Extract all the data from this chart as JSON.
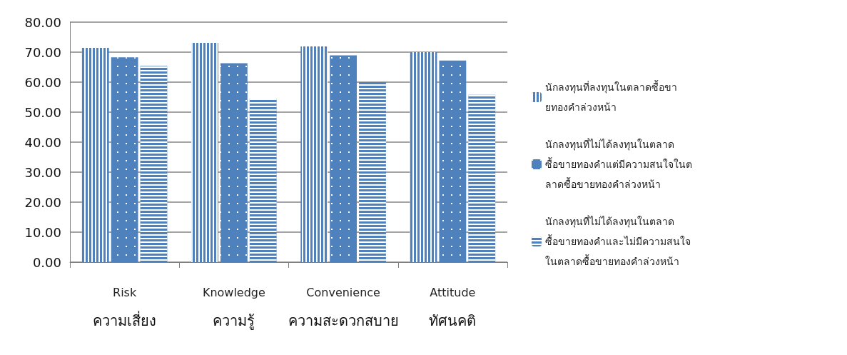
{
  "chart_data": {
    "type": "bar",
    "categories": [
      "Risk\nความเสี่ยง",
      "Knowledge\nความรู้",
      "Convenience\nความสะดวกสบาย",
      "Attitude\nทัศนคติ"
    ],
    "series": [
      {
        "name": "นักลงทุนที่ลงทุนในตลาดซื้อขายทองคำล่วงหน้า",
        "color": "#4f81bd",
        "values": [
          71.4,
          73.1,
          71.9,
          70.0
        ]
      },
      {
        "name": "นักลงทุนที่ไม่ได้ลงทุนในตลาดซื้อขายทองคำแต่มีความสนใจในตลาดซื้อขายทองคำล่วงหน้า",
        "color": "#4f81bd",
        "values": [
          68.3,
          66.3,
          68.9,
          67.2
        ]
      },
      {
        "name": "นักลงทุนที่ไม่ได้ลงทุนในตลาดซื้อขายทองคำและไม่มีความสนใจในตลาดซื้อขายทองคำล่วงหน้า",
        "color": "#4f81bd",
        "values": [
          65.4,
          54.5,
          60.0,
          55.8
        ]
      }
    ],
    "ylim": [
      0,
      80
    ],
    "yticks": [
      {
        "value": 0,
        "label": "0.00"
      },
      {
        "value": 10,
        "label": "10.00"
      },
      {
        "value": 20,
        "label": "20.00"
      },
      {
        "value": 30,
        "label": "30.00"
      },
      {
        "value": 40,
        "label": "40.00"
      },
      {
        "value": 50,
        "label": "50.00"
      },
      {
        "value": 60,
        "label": "60.00"
      },
      {
        "value": 70,
        "label": "70.00"
      },
      {
        "value": 80,
        "label": "80.00"
      }
    ],
    "grid": "y",
    "legend": "right"
  }
}
